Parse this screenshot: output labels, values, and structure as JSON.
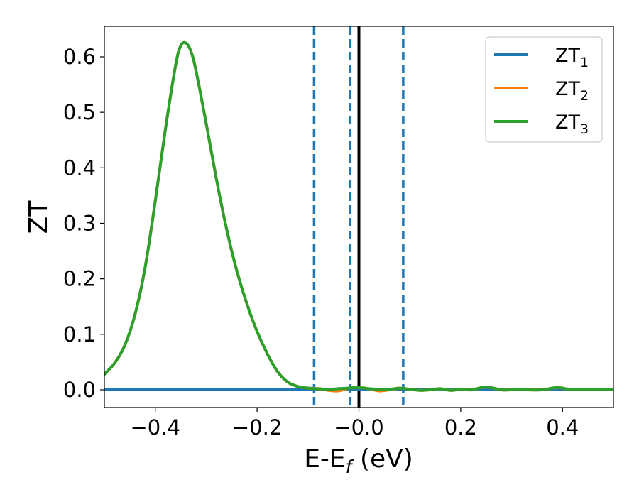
{
  "chart_data": {
    "type": "line",
    "xlabel": {
      "main": "E-E",
      "sub": "f",
      "unit": " (eV)"
    },
    "ylabel": "ZT",
    "xlim": [
      -0.5,
      0.5
    ],
    "ylim": [
      -0.032,
      0.655
    ],
    "xticks": [
      -0.4,
      -0.2,
      0.0,
      0.2,
      0.4
    ],
    "xtick_labels": [
      "−0.4",
      "−0.2",
      "−0.0",
      "0.2",
      "0.4"
    ],
    "yticks": [
      0.0,
      0.1,
      0.2,
      0.3,
      0.4,
      0.5,
      0.6
    ],
    "ytick_labels": [
      "0.0",
      "0.1",
      "0.2",
      "0.3",
      "0.4",
      "0.5",
      "0.6"
    ],
    "grid": false,
    "legend_position": "top-right",
    "series": [
      {
        "name": "ZT",
        "sub": "1",
        "color": "#1f77b4",
        "x": [
          -0.5,
          -0.4,
          -0.35,
          -0.3,
          -0.2,
          -0.1,
          -0.05,
          0.0,
          0.1,
          0.2,
          0.3,
          0.4,
          0.5
        ],
        "y": [
          0.0,
          0.0005,
          0.001,
          0.0008,
          0.0003,
          0.0003,
          0.0005,
          0.001,
          0.001,
          0.0005,
          0.0003,
          0.0003,
          0.0
        ]
      },
      {
        "name": "ZT",
        "sub": "2",
        "color": "#ff7f0e",
        "x": [
          -0.5,
          -0.48,
          -0.46,
          -0.44,
          -0.42,
          -0.4,
          -0.38,
          -0.36,
          -0.35,
          -0.34,
          -0.33,
          -0.32,
          -0.3,
          -0.28,
          -0.26,
          -0.24,
          -0.22,
          -0.2,
          -0.18,
          -0.16,
          -0.14,
          -0.12,
          -0.1,
          -0.08,
          -0.06,
          -0.04,
          -0.02,
          0.0,
          0.02,
          0.04,
          0.06,
          0.08,
          0.1,
          0.12,
          0.14,
          0.16,
          0.18,
          0.2,
          0.22,
          0.25,
          0.28,
          0.3,
          0.33,
          0.36,
          0.39,
          0.42,
          0.45,
          0.48,
          0.5
        ],
        "y": [
          0.028,
          0.048,
          0.08,
          0.135,
          0.22,
          0.34,
          0.47,
          0.585,
          0.62,
          0.625,
          0.61,
          0.575,
          0.48,
          0.38,
          0.29,
          0.215,
          0.155,
          0.105,
          0.065,
          0.033,
          0.014,
          0.006,
          0.003,
          0.002,
          -0.001,
          -0.002,
          0.003,
          0.004,
          0.002,
          -0.002,
          0.0,
          0.003,
          0.001,
          -0.001,
          0.0,
          0.002,
          -0.001,
          0.001,
          0.0,
          0.005,
          0.0,
          0.0,
          0.0,
          0.0,
          0.004,
          0.0,
          0.001,
          0.0,
          0.0
        ]
      },
      {
        "name": "ZT",
        "sub": "3",
        "color": "#2ca02c",
        "x": [
          -0.5,
          -0.48,
          -0.46,
          -0.44,
          -0.42,
          -0.4,
          -0.38,
          -0.36,
          -0.35,
          -0.34,
          -0.33,
          -0.32,
          -0.3,
          -0.28,
          -0.26,
          -0.24,
          -0.22,
          -0.2,
          -0.18,
          -0.16,
          -0.14,
          -0.12,
          -0.1,
          -0.08,
          -0.06,
          -0.04,
          -0.02,
          0.0,
          0.02,
          0.04,
          0.06,
          0.08,
          0.1,
          0.12,
          0.14,
          0.16,
          0.18,
          0.2,
          0.22,
          0.25,
          0.28,
          0.3,
          0.33,
          0.36,
          0.39,
          0.42,
          0.45,
          0.48,
          0.5
        ],
        "y": [
          0.028,
          0.048,
          0.08,
          0.135,
          0.22,
          0.34,
          0.47,
          0.585,
          0.62,
          0.625,
          0.61,
          0.575,
          0.48,
          0.38,
          0.29,
          0.215,
          0.155,
          0.105,
          0.065,
          0.033,
          0.014,
          0.006,
          0.003,
          0.002,
          0.001,
          0.002,
          0.003,
          0.004,
          0.002,
          0.001,
          0.001,
          0.003,
          0.001,
          -0.001,
          0.0,
          0.002,
          -0.001,
          0.001,
          0.0,
          0.005,
          0.0,
          0.0,
          0.0,
          0.0,
          0.004,
          0.0,
          0.001,
          0.0,
          0.0
        ]
      }
    ],
    "vlines": [
      {
        "x": -0.088,
        "style": "dashed",
        "color": "#1f77b4"
      },
      {
        "x": -0.017,
        "style": "dashed",
        "color": "#1f77b4"
      },
      {
        "x": 0.0,
        "style": "solid",
        "color": "#000000"
      },
      {
        "x": 0.087,
        "style": "dashed",
        "color": "#1f77b4"
      }
    ]
  }
}
